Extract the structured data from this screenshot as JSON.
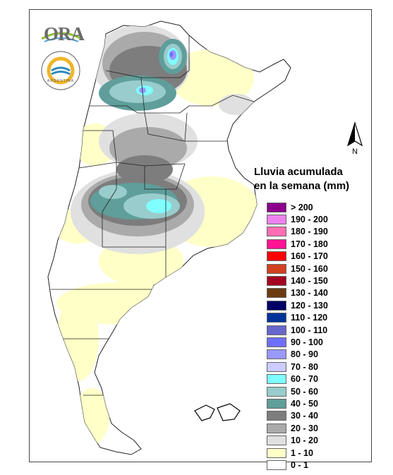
{
  "logo": {
    "name": "ORA",
    "seal_text": "ARGENTINA"
  },
  "north_arrow": {
    "label": "N"
  },
  "legend": {
    "title_line1": "Lluvia acumulada",
    "title_line2": "en la semana (mm)",
    "items": [
      {
        "label": "> 200",
        "color": "#8B008B"
      },
      {
        "label": "190 - 200",
        "color": "#EE82EE"
      },
      {
        "label": "180 - 190",
        "color": "#FF6EB4"
      },
      {
        "label": "170 - 180",
        "color": "#FF1493"
      },
      {
        "label": "160 - 170",
        "color": "#FF0000"
      },
      {
        "label": "150 - 160",
        "color": "#D2401E"
      },
      {
        "label": "140 - 150",
        "color": "#A50021"
      },
      {
        "label": "130 - 140",
        "color": "#6B3A10"
      },
      {
        "label": "120 - 130",
        "color": "#000066"
      },
      {
        "label": "110 - 120",
        "color": "#003399"
      },
      {
        "label": "100 - 110",
        "color": "#6666CC"
      },
      {
        "label": "90 - 100",
        "color": "#6F6FFF"
      },
      {
        "label": "80 - 90",
        "color": "#9999FF"
      },
      {
        "label": "70 - 80",
        "color": "#CCCCFF"
      },
      {
        "label": "60 - 70",
        "color": "#7FFFFF"
      },
      {
        "label": "50 - 60",
        "color": "#99CCCC"
      },
      {
        "label": "40 - 50",
        "color": "#5F9E9A"
      },
      {
        "label": "30 - 40",
        "color": "#7D7D7D"
      },
      {
        "label": "20 - 30",
        "color": "#AAAAAA"
      },
      {
        "label": "10 - 20",
        "color": "#E0E0E0"
      },
      {
        "label": "1 - 10",
        "color": "#FFFFC8"
      },
      {
        "label": "0 - 1",
        "color": "#FFFFFF"
      }
    ]
  }
}
